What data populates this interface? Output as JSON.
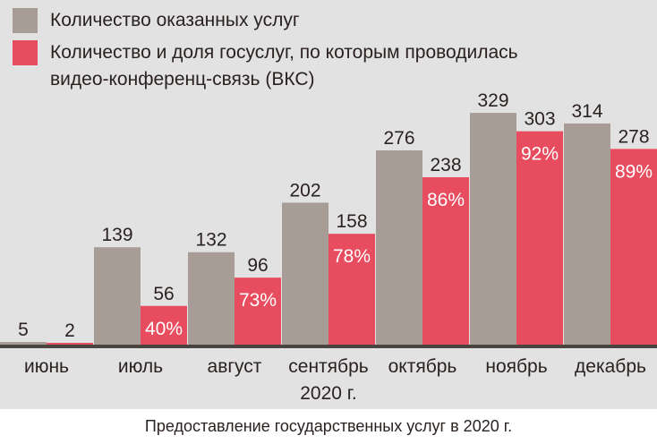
{
  "chart_data": {
    "type": "bar",
    "title": "Предоставление государственных услуг в 2020 г.",
    "xlabel": "2020 г.",
    "ylabel": "",
    "categories": [
      "июнь",
      "июль",
      "август",
      "сентябрь",
      "октябрь",
      "ноябрь",
      "декабрь"
    ],
    "series": [
      {
        "name": "Количество оказанных услуг",
        "color": "#a89d96",
        "values": [
          5,
          139,
          132,
          202,
          276,
          329,
          314
        ]
      },
      {
        "name": "Количество и доля госуслуг, по которым проводилась видео-конференц-связь (ВКС)",
        "color": "#e84c5f",
        "values": [
          2,
          56,
          96,
          158,
          238,
          303,
          278
        ],
        "shares": [
          "",
          "40%",
          "73%",
          "78%",
          "86%",
          "92%",
          "89%"
        ]
      }
    ],
    "ylim": [
      0,
      340
    ],
    "grid": false,
    "legend_position": "top-left"
  },
  "legend": {
    "line1": "Количество оказанных услуг",
    "line2a": "Количество и доля госуслуг, по которым проводилась",
    "line2b": "видео-конференц-связь (ВКС)"
  }
}
